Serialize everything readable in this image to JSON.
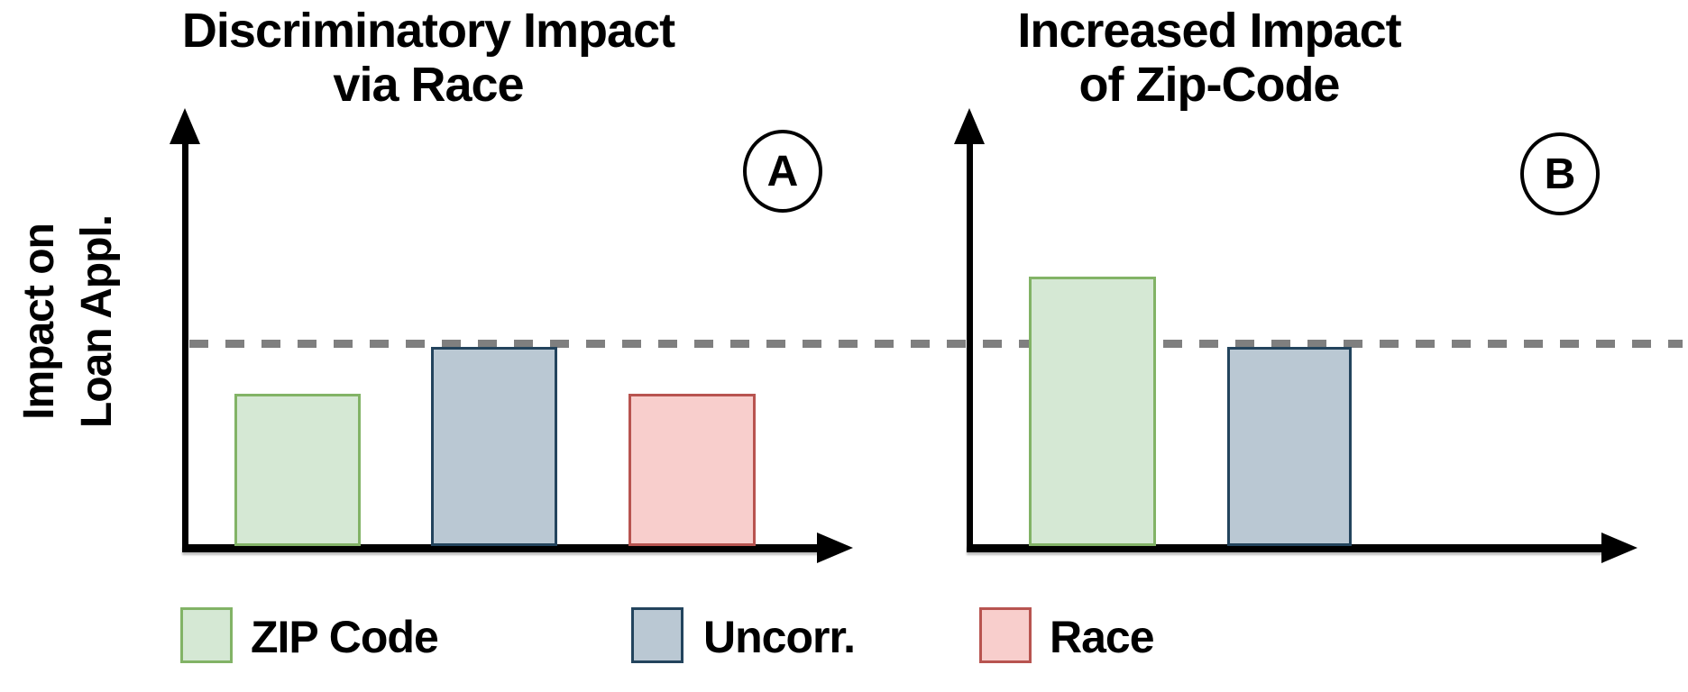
{
  "figure": {
    "y_axis_label": {
      "line1": "Impact on",
      "line2": "Loan Appl."
    },
    "panels": [
      {
        "badge": "A",
        "title_line1": "Discriminatory Impact",
        "title_line2": "via Race"
      },
      {
        "badge": "B",
        "title_line1": "Increased Impact",
        "title_line2": "of Zip-Code"
      }
    ],
    "legend": [
      {
        "label": "ZIP Code",
        "fill": "#d5e8d4",
        "stroke": "#82b366"
      },
      {
        "label": "Uncorr.",
        "fill": "#bac8d3",
        "stroke": "#23445d"
      },
      {
        "label": "Race",
        "fill": "#f8cecc",
        "stroke": "#b85450"
      }
    ],
    "colors": {
      "axis": "#000000",
      "dashed_threshold_line": "#7f7f7f",
      "background": "#ffffff",
      "text": "#000000"
    }
  },
  "chart_data": [
    {
      "type": "bar",
      "panel": "A",
      "title": "Discriminatory Impact via Race",
      "ylabel": "Impact on Loan Appl.",
      "xlabel": "",
      "categories": [
        "ZIP Code",
        "Uncorr.",
        "Race"
      ],
      "values": [
        0.75,
        0.98,
        0.75
      ],
      "ylim": [
        0,
        2
      ],
      "grid": false,
      "axis_tick_labels": "none (schematic axes with arrowheads)",
      "annotations": [
        "horizontal gray dashed threshold line at y = 1.0 spanning both panels"
      ]
    },
    {
      "type": "bar",
      "panel": "B",
      "title": "Increased Impact of Zip-Code",
      "ylabel": "Impact on Loan Appl.",
      "xlabel": "",
      "categories": [
        "ZIP Code",
        "Uncorr."
      ],
      "values": [
        1.33,
        0.98
      ],
      "ylim": [
        0,
        2
      ],
      "grid": false,
      "axis_tick_labels": "none (schematic axes with arrowheads)",
      "annotations": [
        "horizontal gray dashed threshold line at y = 1.0 spanning both panels"
      ]
    }
  ],
  "legend_position": "bottom"
}
